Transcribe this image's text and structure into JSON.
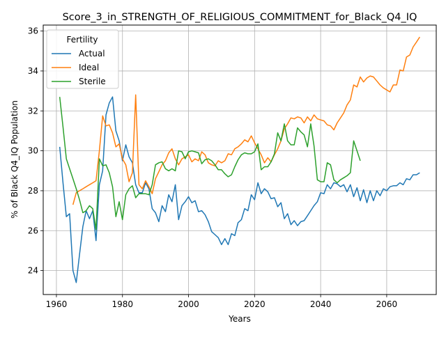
{
  "chart_data": {
    "type": "line",
    "title": "Score_3_in_STRENGTH_OF_RELIGIOUS_COMMITMENT_for_Black_Q4_IQ",
    "xlabel": "Years",
    "ylabel": "% of Black Q4_IQ Population",
    "xlim": [
      1956,
      2075
    ],
    "ylim": [
      22.8,
      36.3
    ],
    "xticks": [
      1960,
      1980,
      2000,
      2020,
      2040,
      2060
    ],
    "yticks": [
      24,
      26,
      28,
      30,
      32,
      34,
      36
    ],
    "grid": true,
    "legend": {
      "title": "Fertility",
      "placement": "top-left"
    },
    "series": [
      {
        "name": "Actual",
        "color": "#1f77b4",
        "points": [
          [
            1961,
            30.2
          ],
          [
            1962,
            28.4
          ],
          [
            1963,
            26.7
          ],
          [
            1964,
            26.85
          ],
          [
            1965,
            24.0
          ],
          [
            1966,
            23.4
          ],
          [
            1967,
            24.8
          ],
          [
            1968,
            26.2
          ],
          [
            1969,
            27.0
          ],
          [
            1970,
            26.6
          ],
          [
            1971,
            27.0
          ],
          [
            1972,
            25.5
          ],
          [
            1973,
            28.3
          ],
          [
            1974,
            29.0
          ],
          [
            1975,
            31.8
          ],
          [
            1976,
            32.4
          ],
          [
            1977,
            32.7
          ],
          [
            1978,
            31.0
          ],
          [
            1979,
            30.5
          ],
          [
            1980,
            29.5
          ],
          [
            1981,
            30.3
          ],
          [
            1982,
            29.7
          ],
          [
            1983,
            29.4
          ],
          [
            1984,
            28.3
          ],
          [
            1985,
            27.9
          ],
          [
            1986,
            27.9
          ],
          [
            1987,
            28.4
          ],
          [
            1988,
            28.1
          ],
          [
            1989,
            27.1
          ],
          [
            1990,
            26.9
          ],
          [
            1991,
            26.45
          ],
          [
            1992,
            27.25
          ],
          [
            1993,
            26.95
          ],
          [
            1994,
            27.8
          ],
          [
            1995,
            27.45
          ],
          [
            1996,
            28.3
          ],
          [
            1997,
            26.55
          ],
          [
            1998,
            27.25
          ],
          [
            1999,
            27.45
          ],
          [
            2000,
            27.7
          ],
          [
            2001,
            27.4
          ],
          [
            2002,
            27.5
          ],
          [
            2003,
            26.95
          ],
          [
            2004,
            27.0
          ],
          [
            2005,
            26.8
          ],
          [
            2006,
            26.45
          ],
          [
            2007,
            25.95
          ],
          [
            2008,
            25.8
          ],
          [
            2009,
            25.65
          ],
          [
            2010,
            25.3
          ],
          [
            2011,
            25.6
          ],
          [
            2012,
            25.3
          ],
          [
            2013,
            25.85
          ],
          [
            2014,
            25.75
          ],
          [
            2015,
            26.4
          ],
          [
            2016,
            26.55
          ],
          [
            2017,
            27.1
          ],
          [
            2018,
            27.0
          ],
          [
            2019,
            27.8
          ],
          [
            2020,
            27.55
          ],
          [
            2021,
            28.4
          ],
          [
            2022,
            27.85
          ],
          [
            2023,
            28.1
          ],
          [
            2024,
            27.95
          ],
          [
            2025,
            27.6
          ],
          [
            2026,
            27.65
          ],
          [
            2027,
            27.2
          ],
          [
            2028,
            27.4
          ],
          [
            2029,
            26.6
          ],
          [
            2030,
            26.85
          ],
          [
            2031,
            26.3
          ],
          [
            2032,
            26.5
          ],
          [
            2033,
            26.25
          ],
          [
            2034,
            26.45
          ],
          [
            2035,
            26.5
          ],
          [
            2036,
            26.75
          ],
          [
            2037,
            27.0
          ],
          [
            2038,
            27.25
          ],
          [
            2039,
            27.45
          ],
          [
            2040,
            27.9
          ],
          [
            2041,
            27.85
          ],
          [
            2042,
            28.3
          ],
          [
            2043,
            28.1
          ],
          [
            2044,
            28.4
          ],
          [
            2045,
            28.35
          ],
          [
            2046,
            28.2
          ],
          [
            2047,
            28.3
          ],
          [
            2048,
            27.95
          ],
          [
            2049,
            28.3
          ],
          [
            2050,
            27.7
          ],
          [
            2051,
            28.15
          ],
          [
            2052,
            27.5
          ],
          [
            2053,
            28.05
          ],
          [
            2054,
            27.4
          ],
          [
            2055,
            28.0
          ],
          [
            2056,
            27.5
          ],
          [
            2057,
            28.0
          ],
          [
            2058,
            27.75
          ],
          [
            2059,
            28.1
          ],
          [
            2060,
            28.0
          ],
          [
            2061,
            28.2
          ],
          [
            2062,
            28.25
          ],
          [
            2063,
            28.25
          ],
          [
            2064,
            28.4
          ],
          [
            2065,
            28.3
          ],
          [
            2066,
            28.6
          ],
          [
            2067,
            28.55
          ],
          [
            2068,
            28.8
          ],
          [
            2069,
            28.8
          ],
          [
            2070,
            28.9
          ]
        ]
      },
      {
        "name": "Ideal",
        "color": "#ff7f0e",
        "points": [
          [
            1965,
            27.3
          ],
          [
            1966,
            27.9
          ],
          [
            1967,
            28.0
          ],
          [
            1968,
            28.1
          ],
          [
            1969,
            28.2
          ],
          [
            1970,
            28.3
          ],
          [
            1971,
            28.4
          ],
          [
            1972,
            28.5
          ],
          [
            1973,
            30.0
          ],
          [
            1974,
            31.75
          ],
          [
            1975,
            31.25
          ],
          [
            1976,
            31.3
          ],
          [
            1977,
            30.9
          ],
          [
            1978,
            30.2
          ],
          [
            1979,
            30.35
          ],
          [
            1980,
            29.6
          ],
          [
            1981,
            29.3
          ],
          [
            1982,
            28.45
          ],
          [
            1983,
            28.9
          ],
          [
            1984,
            32.8
          ],
          [
            1985,
            28.3
          ],
          [
            1986,
            28.1
          ],
          [
            1987,
            28.5
          ],
          [
            1988,
            28.2
          ],
          [
            1989,
            27.85
          ],
          [
            1990,
            28.6
          ],
          [
            1991,
            28.95
          ],
          [
            1992,
            29.3
          ],
          [
            1993,
            29.5
          ],
          [
            1994,
            29.9
          ],
          [
            1995,
            30.1
          ],
          [
            1996,
            29.6
          ],
          [
            1997,
            29.3
          ],
          [
            1998,
            29.6
          ],
          [
            1999,
            29.7
          ],
          [
            2000,
            29.8
          ],
          [
            2001,
            29.45
          ],
          [
            2002,
            29.6
          ],
          [
            2003,
            29.5
          ],
          [
            2004,
            29.95
          ],
          [
            2005,
            29.8
          ],
          [
            2006,
            29.4
          ],
          [
            2007,
            29.3
          ],
          [
            2008,
            29.25
          ],
          [
            2009,
            29.5
          ],
          [
            2010,
            29.4
          ],
          [
            2011,
            29.5
          ],
          [
            2012,
            29.85
          ],
          [
            2013,
            29.8
          ],
          [
            2014,
            30.1
          ],
          [
            2015,
            30.2
          ],
          [
            2016,
            30.35
          ],
          [
            2017,
            30.55
          ],
          [
            2018,
            30.45
          ],
          [
            2019,
            30.75
          ],
          [
            2020,
            30.4
          ],
          [
            2021,
            30.1
          ],
          [
            2022,
            29.8
          ],
          [
            2023,
            29.4
          ],
          [
            2024,
            29.65
          ],
          [
            2025,
            29.45
          ],
          [
            2026,
            29.8
          ],
          [
            2027,
            30.1
          ],
          [
            2028,
            30.5
          ],
          [
            2029,
            31.1
          ],
          [
            2030,
            31.35
          ],
          [
            2031,
            31.65
          ],
          [
            2032,
            31.6
          ],
          [
            2033,
            31.7
          ],
          [
            2034,
            31.65
          ],
          [
            2035,
            31.4
          ],
          [
            2036,
            31.7
          ],
          [
            2037,
            31.5
          ],
          [
            2038,
            31.8
          ],
          [
            2039,
            31.6
          ],
          [
            2040,
            31.55
          ],
          [
            2041,
            31.5
          ],
          [
            2042,
            31.3
          ],
          [
            2043,
            31.25
          ],
          [
            2044,
            31.05
          ],
          [
            2045,
            31.4
          ],
          [
            2046,
            31.65
          ],
          [
            2047,
            31.9
          ],
          [
            2048,
            32.3
          ],
          [
            2049,
            32.55
          ],
          [
            2050,
            33.3
          ],
          [
            2051,
            33.2
          ],
          [
            2052,
            33.7
          ],
          [
            2053,
            33.45
          ],
          [
            2054,
            33.65
          ],
          [
            2055,
            33.75
          ],
          [
            2056,
            33.7
          ],
          [
            2057,
            33.5
          ],
          [
            2058,
            33.3
          ],
          [
            2059,
            33.15
          ],
          [
            2060,
            33.05
          ],
          [
            2061,
            32.95
          ],
          [
            2062,
            33.3
          ],
          [
            2063,
            33.3
          ],
          [
            2064,
            34.05
          ],
          [
            2065,
            34.0
          ],
          [
            2066,
            34.7
          ],
          [
            2067,
            34.8
          ],
          [
            2068,
            35.2
          ],
          [
            2069,
            35.45
          ],
          [
            2070,
            35.7
          ]
        ]
      },
      {
        "name": "Sterile",
        "color": "#2ca02c",
        "points": [
          [
            1961,
            32.7
          ],
          [
            1962,
            31.2
          ],
          [
            1963,
            29.6
          ],
          [
            1964,
            29.1
          ],
          [
            1965,
            28.6
          ],
          [
            1966,
            28.1
          ],
          [
            1967,
            27.55
          ],
          [
            1968,
            26.9
          ],
          [
            1969,
            27.0
          ],
          [
            1970,
            27.25
          ],
          [
            1971,
            27.1
          ],
          [
            1972,
            26.05
          ],
          [
            1973,
            29.6
          ],
          [
            1974,
            29.25
          ],
          [
            1975,
            29.3
          ],
          [
            1976,
            28.9
          ],
          [
            1977,
            28.2
          ],
          [
            1978,
            26.7
          ],
          [
            1979,
            27.45
          ],
          [
            1980,
            26.55
          ],
          [
            1981,
            27.8
          ],
          [
            1982,
            28.1
          ],
          [
            1983,
            28.25
          ],
          [
            1984,
            27.65
          ],
          [
            1985,
            27.85
          ],
          [
            1986,
            27.85
          ],
          [
            1987,
            27.85
          ],
          [
            1988,
            27.8
          ],
          [
            1989,
            28.3
          ],
          [
            1990,
            29.3
          ],
          [
            1991,
            29.4
          ],
          [
            1992,
            29.45
          ],
          [
            1993,
            29.1
          ],
          [
            1994,
            29.0
          ],
          [
            1995,
            29.1
          ],
          [
            1996,
            29.0
          ],
          [
            1997,
            30.0
          ],
          [
            1998,
            29.95
          ],
          [
            1999,
            29.6
          ],
          [
            2000,
            29.95
          ],
          [
            2001,
            30.0
          ],
          [
            2002,
            29.95
          ],
          [
            2003,
            29.9
          ],
          [
            2004,
            29.35
          ],
          [
            2005,
            29.55
          ],
          [
            2006,
            29.6
          ],
          [
            2007,
            29.5
          ],
          [
            2008,
            29.3
          ],
          [
            2009,
            29.05
          ],
          [
            2010,
            29.05
          ],
          [
            2011,
            28.85
          ],
          [
            2012,
            28.7
          ],
          [
            2013,
            28.8
          ],
          [
            2014,
            29.2
          ],
          [
            2015,
            29.55
          ],
          [
            2016,
            29.8
          ],
          [
            2017,
            29.9
          ],
          [
            2018,
            29.85
          ],
          [
            2019,
            29.85
          ],
          [
            2020,
            29.95
          ],
          [
            2021,
            30.35
          ],
          [
            2022,
            29.05
          ],
          [
            2023,
            29.2
          ],
          [
            2024,
            29.2
          ],
          [
            2025,
            29.45
          ],
          [
            2026,
            29.85
          ],
          [
            2027,
            30.9
          ],
          [
            2028,
            30.5
          ],
          [
            2029,
            31.35
          ],
          [
            2030,
            30.5
          ],
          [
            2031,
            30.3
          ],
          [
            2032,
            30.3
          ],
          [
            2033,
            31.15
          ],
          [
            2034,
            30.95
          ],
          [
            2035,
            30.8
          ],
          [
            2036,
            30.2
          ],
          [
            2037,
            31.35
          ],
          [
            2038,
            30.25
          ],
          [
            2039,
            28.55
          ],
          [
            2040,
            28.45
          ],
          [
            2041,
            28.45
          ],
          [
            2042,
            29.4
          ],
          [
            2043,
            29.3
          ],
          [
            2044,
            28.55
          ],
          [
            2045,
            28.4
          ],
          [
            2046,
            28.55
          ],
          [
            2047,
            28.65
          ],
          [
            2048,
            28.75
          ],
          [
            2049,
            28.9
          ],
          [
            2050,
            30.5
          ],
          [
            2051,
            30.0
          ],
          [
            2052,
            29.5
          ]
        ]
      }
    ]
  }
}
